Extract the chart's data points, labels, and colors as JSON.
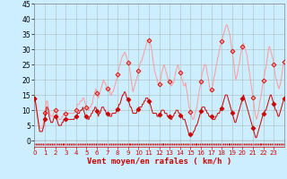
{
  "title": "",
  "xlabel": "Vent moyen/en rafales ( km/h )",
  "xlabel_color": "#cc0000",
  "background_color": "#cceeff",
  "grid_color": "#aabbbb",
  "ylim": [
    -2,
    45
  ],
  "xlim": [
    0,
    24
  ],
  "yticks": [
    0,
    5,
    10,
    15,
    20,
    25,
    30,
    35,
    40,
    45
  ],
  "xtick_labels": [
    "0",
    "1",
    "2",
    "3",
    "4",
    "5",
    "6",
    "7",
    "8",
    "9",
    "10",
    "11",
    "12",
    "13",
    "14",
    "15",
    "16",
    "17",
    "18",
    "19",
    "20",
    "21",
    "22",
    "23"
  ],
  "wind_avg": [
    14,
    13,
    11,
    9,
    7,
    5,
    3,
    3,
    3,
    3,
    4,
    5,
    7,
    9,
    11,
    11,
    10,
    8,
    7,
    6,
    6,
    6,
    7,
    8,
    8,
    8,
    7,
    6,
    5,
    5,
    5,
    5,
    6,
    6,
    7,
    7,
    7,
    7,
    7,
    7,
    7,
    7,
    7,
    7,
    7,
    7,
    7,
    8,
    8,
    8,
    9,
    9,
    9,
    10,
    10,
    10,
    11,
    10,
    9,
    8,
    8,
    8,
    7,
    7,
    8,
    8,
    9,
    9,
    10,
    10,
    11,
    11,
    10,
    9,
    8,
    9,
    9,
    10,
    11,
    11,
    11,
    10,
    10,
    9,
    9,
    9,
    9,
    8,
    8,
    8,
    9,
    9,
    9,
    9,
    9,
    10,
    10,
    11,
    12,
    12,
    13,
    14,
    15,
    15,
    16,
    16,
    15,
    14,
    14,
    13,
    12,
    11,
    11,
    10,
    9,
    9,
    9,
    9,
    9,
    10,
    10,
    11,
    11,
    11,
    11,
    12,
    12,
    13,
    13,
    14,
    14,
    14,
    13,
    13,
    12,
    11,
    10,
    9,
    9,
    9,
    9,
    9,
    8,
    8,
    8,
    9,
    9,
    10,
    10,
    10,
    10,
    9,
    9,
    9,
    8,
    8,
    8,
    8,
    7,
    7,
    8,
    8,
    9,
    9,
    10,
    10,
    10,
    9,
    9,
    8,
    8,
    8,
    7,
    7,
    7,
    6,
    5,
    4,
    3,
    2,
    2,
    2,
    2,
    2,
    3,
    3,
    4,
    5,
    5,
    6,
    7,
    8,
    9,
    10,
    11,
    11,
    11,
    11,
    10,
    10,
    9,
    9,
    8,
    8,
    8,
    8,
    7,
    7,
    7,
    7,
    8,
    8,
    9,
    9,
    9,
    10,
    10,
    11,
    12,
    13,
    14,
    15,
    15,
    15,
    14,
    13,
    12,
    11,
    10,
    9,
    8,
    7,
    6,
    6,
    7,
    8,
    9,
    10,
    11,
    12,
    13,
    14,
    15,
    14,
    13,
    12,
    11,
    10,
    9,
    8,
    7,
    6,
    5,
    4,
    3,
    2,
    1,
    1,
    2,
    3,
    4,
    5,
    6,
    7,
    8,
    9,
    9,
    10,
    10,
    11,
    12,
    13,
    14,
    15,
    15,
    14,
    13,
    12,
    11,
    10,
    10,
    9,
    8,
    8,
    9,
    10,
    11,
    12,
    13,
    14
  ],
  "wind_gust": [
    14,
    13,
    12,
    10,
    8,
    6,
    5,
    4,
    4,
    4,
    5,
    7,
    9,
    11,
    13,
    13,
    11,
    10,
    9,
    8,
    8,
    8,
    9,
    10,
    10,
    10,
    9,
    8,
    7,
    7,
    7,
    7,
    8,
    8,
    9,
    9,
    9,
    9,
    9,
    9,
    9,
    9,
    9,
    9,
    9,
    9,
    9,
    10,
    10,
    11,
    12,
    12,
    12,
    13,
    13,
    13,
    14,
    14,
    13,
    12,
    11,
    11,
    10,
    10,
    11,
    11,
    12,
    12,
    14,
    15,
    16,
    17,
    16,
    15,
    14,
    15,
    16,
    17,
    18,
    19,
    20,
    19,
    19,
    18,
    17,
    17,
    17,
    16,
    15,
    15,
    16,
    16,
    17,
    18,
    19,
    20,
    21,
    23,
    24,
    25,
    26,
    27,
    28,
    28,
    29,
    29,
    28,
    27,
    26,
    25,
    24,
    22,
    20,
    18,
    16,
    17,
    18,
    19,
    20,
    21,
    22,
    24,
    25,
    26,
    26,
    27,
    28,
    29,
    30,
    31,
    32,
    33,
    33,
    33,
    32,
    31,
    29,
    27,
    25,
    23,
    22,
    21,
    20,
    19,
    18,
    19,
    20,
    22,
    23,
    24,
    25,
    24,
    23,
    22,
    21,
    20,
    20,
    19,
    18,
    18,
    19,
    19,
    20,
    22,
    23,
    24,
    25,
    24,
    23,
    22,
    21,
    20,
    19,
    18,
    18,
    19,
    17,
    15,
    13,
    11,
    10,
    9,
    8,
    7,
    7,
    8,
    9,
    10,
    11,
    13,
    15,
    17,
    18,
    20,
    22,
    23,
    24,
    25,
    25,
    24,
    22,
    21,
    19,
    17,
    16,
    17,
    18,
    19,
    21,
    22,
    24,
    25,
    27,
    28,
    30,
    31,
    32,
    33,
    34,
    35,
    36,
    37,
    38,
    38,
    37,
    36,
    35,
    33,
    31,
    29,
    27,
    25,
    22,
    20,
    21,
    22,
    24,
    25,
    27,
    29,
    30,
    31,
    32,
    31,
    30,
    29,
    28,
    26,
    24,
    22,
    20,
    18,
    16,
    14,
    12,
    10,
    8,
    7,
    8,
    9,
    11,
    13,
    14,
    16,
    18,
    20,
    21,
    23,
    24,
    26,
    28,
    30,
    31,
    30,
    29,
    28,
    27,
    25,
    23,
    21,
    20,
    19,
    18,
    17,
    18,
    19,
    21,
    23,
    25,
    26
  ],
  "avg_color": "#cc0000",
  "gust_color": "#ff9999",
  "marker_avg_color": "#cc0000",
  "marker_gust_color": "#ff9999",
  "marker_size": 2.5,
  "linewidth_avg": 0.7,
  "linewidth_gust": 0.7
}
